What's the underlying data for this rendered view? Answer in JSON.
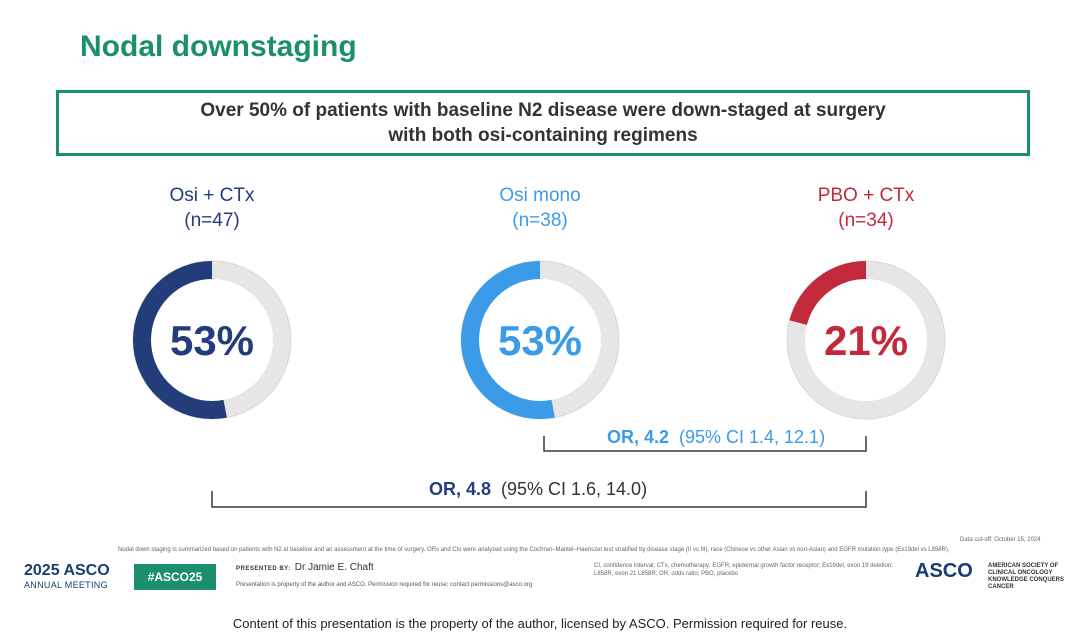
{
  "slide": {
    "title": "Nodal downstaging",
    "callout_line1": "Over 50% of patients with baseline N2 disease were down-staged at surgery",
    "callout_line2": "with both osi-containing regimens"
  },
  "chart_data": {
    "type": "pie",
    "title": "Nodal downstaging",
    "series": [
      {
        "name": "Osi + CTx",
        "n_label": "(n=47)",
        "value": 53,
        "label": "53%",
        "color": "#233d7a"
      },
      {
        "name": "Osi mono",
        "n_label": "(n=38)",
        "value": 53,
        "label": "53%",
        "color": "#3b9be9"
      },
      {
        "name": "PBO + CTx",
        "n_label": "(n=34)",
        "value": 21,
        "label": "21%",
        "color": "#c22a3c"
      }
    ],
    "comparisons": [
      {
        "between": [
          "Osi mono",
          "PBO + CTx"
        ],
        "or_label": "OR, 4.2",
        "ci_label": "(95% CI 1.4, 12.1)",
        "color": "#3b9be9"
      },
      {
        "between": [
          "Osi + CTx",
          "PBO + CTx"
        ],
        "or_label": "OR, 4.8",
        "ci_label": "(95% CI 1.6, 14.0)",
        "color": "#233d7a"
      }
    ]
  },
  "colors": {
    "accent": "#1b8f6d",
    "track": "#e6e6e6",
    "osi_ctx_text": "#233d7a",
    "osi_mono_text": "#3b9be9",
    "pbo_text": "#c22a3c"
  },
  "footer": {
    "data_cutoff": "Data cut-off: October 15, 2024",
    "methods_note": "Nodal down staging is summarized based on patients with N2 at baseline and an assessment at the time of surgery. ORs and CIs were analyzed using the Cochran–Mantel–Haenszel test stratified by disease stage (II vs III), race (Chinese vs other Asian vs non-Asian) and EGFR mutation type (Ex19del vs L858R).",
    "abbrev_note": "CI, confidence interval; CTx, chemotherapy; EGFR, epidermal growth factor receptor; Ex19del, exon 19 deletion; L858R, exon 21 L858R; OR, odds ratio; PBO, placebo",
    "meeting_year": "2025",
    "meeting_brand": "ASCO",
    "meeting_name": "ANNUAL MEETING",
    "hashtag": "#ASCO25",
    "presented_by_label": "PRESENTED BY:",
    "presenter": "Dr Jamie E. Chaft",
    "property_note": "Presentation is property of the author and ASCO. Permission required for reuse; contact permissions@asco.org",
    "asco_brand": "ASCO",
    "society_line1": "AMERICAN SOCIETY OF",
    "society_line2": "CLINICAL ONCOLOGY",
    "society_tagline": "KNOWLEDGE CONQUERS CANCER",
    "bottom_notice": "Content of this presentation is the property of the author, licensed by ASCO. Permission required for reuse."
  }
}
